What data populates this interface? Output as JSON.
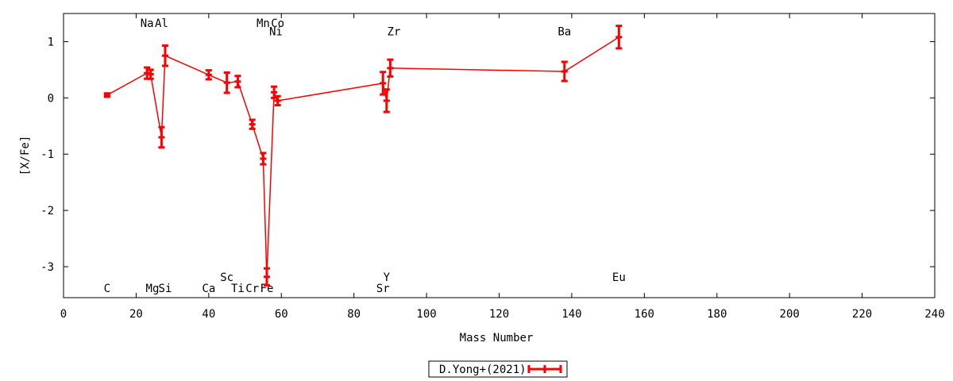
{
  "chart_data": {
    "type": "scatter",
    "xlabel": "Mass Number",
    "ylabel": "[X/Fe]",
    "xlim": [
      0,
      240
    ],
    "ylim": [
      -3.55,
      1.5
    ],
    "xticks": [
      0,
      20,
      40,
      60,
      80,
      100,
      120,
      140,
      160,
      180,
      200,
      220,
      240
    ],
    "yticks": [
      1,
      0,
      -1,
      -2,
      -3
    ],
    "grid": false,
    "legend_position": "bottom-center",
    "series": [
      {
        "name": "D.Yong+(2021)",
        "color": "#ff0000",
        "points": [
          {
            "x": 12,
            "y": 0.05,
            "err": 0.03
          },
          {
            "x": 23,
            "y": 0.44,
            "err": 0.1
          },
          {
            "x": 24,
            "y": 0.42,
            "err": 0.08
          },
          {
            "x": 27,
            "y": -0.7,
            "err": 0.18
          },
          {
            "x": 28,
            "y": 0.75,
            "err": 0.18
          },
          {
            "x": 40,
            "y": 0.41,
            "err": 0.08
          },
          {
            "x": 45,
            "y": 0.27,
            "err": 0.18
          },
          {
            "x": 48,
            "y": 0.29,
            "err": 0.1
          },
          {
            "x": 52,
            "y": -0.47,
            "err": 0.08
          },
          {
            "x": 55,
            "y": -1.08,
            "err": 0.1
          },
          {
            "x": 56,
            "y": -3.18,
            "err": 0.15
          },
          {
            "x": 58,
            "y": 0.1,
            "err": 0.1
          },
          {
            "x": 59,
            "y": -0.05,
            "err": 0.08
          },
          {
            "x": 88,
            "y": 0.26,
            "err": 0.2
          },
          {
            "x": 89,
            "y": -0.05,
            "err": 0.2
          },
          {
            "x": 90,
            "y": 0.53,
            "err": 0.15
          },
          {
            "x": 138,
            "y": 0.47,
            "err": 0.17
          },
          {
            "x": 153,
            "y": 1.08,
            "err": 0.2
          }
        ]
      }
    ],
    "element_labels": [
      {
        "text": "C",
        "x": 12,
        "y": -3.38
      },
      {
        "text": "Na",
        "x": 23,
        "y": 1.33
      },
      {
        "text": "Mg",
        "x": 24.5,
        "y": -3.38
      },
      {
        "text": "Al",
        "x": 27,
        "y": 1.33
      },
      {
        "text": "Si",
        "x": 28,
        "y": -3.38
      },
      {
        "text": "Ca",
        "x": 40,
        "y": -3.38
      },
      {
        "text": "Sc",
        "x": 45,
        "y": -3.18
      },
      {
        "text": "Ti",
        "x": 48,
        "y": -3.38
      },
      {
        "text": "Cr",
        "x": 52,
        "y": -3.38
      },
      {
        "text": "Mn",
        "x": 55,
        "y": 1.33
      },
      {
        "text": "Fe",
        "x": 56,
        "y": -3.38
      },
      {
        "text": "Co",
        "x": 59,
        "y": 1.33
      },
      {
        "text": "Ni",
        "x": 58.5,
        "y": 1.18
      },
      {
        "text": "Y",
        "x": 89,
        "y": -3.18
      },
      {
        "text": "Sr",
        "x": 88,
        "y": -3.38
      },
      {
        "text": "Zr",
        "x": 91,
        "y": 1.18
      },
      {
        "text": "Ba",
        "x": 138,
        "y": 1.18
      },
      {
        "text": "Eu",
        "x": 153,
        "y": -3.18
      }
    ]
  }
}
